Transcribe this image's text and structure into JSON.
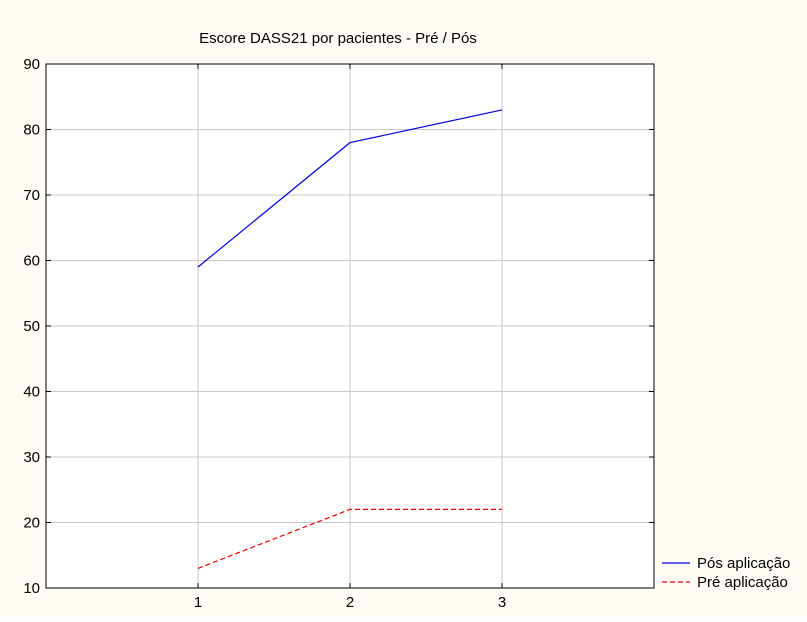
{
  "colors": {
    "background": "#fffcf5",
    "plot_area": "#ffffff",
    "grid": "#c8c8c8",
    "axis": "#000000",
    "series_pos": "#0000e6",
    "series_pre": "#e60000"
  },
  "chart_data": {
    "type": "line",
    "title": "Escore DASS21 por pacientes - Pré / Pós",
    "xlabel": "",
    "ylabel": "",
    "x": [
      1,
      2,
      3
    ],
    "x_tick_labels": [
      "1",
      "2",
      "3"
    ],
    "xlim": [
      0,
      4
    ],
    "ylim": [
      10,
      90
    ],
    "y_ticks": [
      10,
      20,
      30,
      40,
      50,
      60,
      70,
      80,
      90
    ],
    "grid": true,
    "legend_position": "bottom-right outside",
    "series": [
      {
        "name": "Pós aplicação",
        "values": [
          59,
          78,
          83
        ],
        "color": "#0000e6",
        "dash": "solid"
      },
      {
        "name": "Pré aplicação",
        "values": [
          13,
          22,
          22
        ],
        "color": "#e60000",
        "dash": "dashed"
      }
    ]
  }
}
